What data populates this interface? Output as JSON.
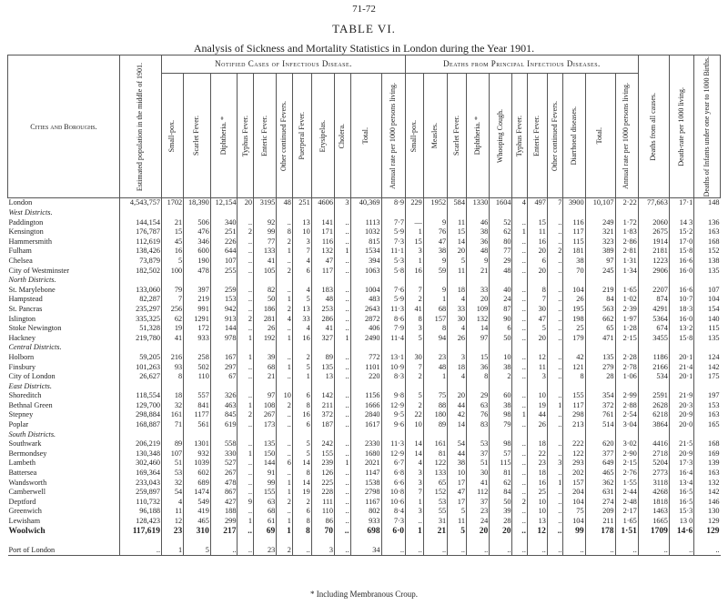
{
  "page_number": "71-72",
  "title": "TABLE VI.",
  "subtitle": "Analysis of Sickness and Mortality Statistics in London during the Year 1901.",
  "header": {
    "name": "Cities and Boroughs.",
    "population": "Estimated population in the middle of 1901.",
    "notified": {
      "title": "Notified Cases of Infectious Disease.",
      "columns": [
        "Small-pox.",
        "Scarlet Fever.",
        "Diphtheria. *",
        "Typhus Fever.",
        "Enteric Fever.",
        "Other continued Fevers.",
        "Puerperal Fever.",
        "Erysipelas.",
        "Cholera.",
        "Total.",
        "Annual rate per 1000 persons living."
      ]
    },
    "deaths": {
      "title": "Deaths from Principal Infectious Diseases.",
      "columns": [
        "Small-pox.",
        "Measles.",
        "Scarlet Fever.",
        "Diphtheria. *",
        "Whooping Cough.",
        "Typhus Fever.",
        "Enteric Fever.",
        "Other continued Fevers.",
        "Diarrhoeal diseases.",
        "Total.",
        "Annual rate per 1000 persons living."
      ]
    },
    "all_causes": "Deaths from all causes.",
    "death_rate": "Death-rate per 1000 living.",
    "infants": "Deaths of Infants under one year to 1000 Births."
  },
  "total_row": [
    "London",
    "4,543,757",
    "1702",
    "18,390",
    "12,154",
    "20",
    "3195",
    "48",
    "251",
    "4606",
    "3",
    "40,369",
    "8·9",
    "229",
    "1952",
    "584",
    "1330",
    "1604",
    "4",
    "497",
    "7",
    "3900",
    "10,107",
    "2·22",
    "77,663",
    "17·1",
    "148"
  ],
  "sections": [
    {
      "title": "West Districts.",
      "rows": [
        [
          "Paddington",
          "144,154",
          "21",
          "506",
          "340",
          "..",
          "92",
          "..",
          "13",
          "141",
          "..",
          "1113",
          "7·7",
          "—",
          "9",
          "11",
          "46",
          "52",
          "..",
          "15",
          "..",
          "116",
          "249",
          "1·72",
          "2060",
          "14 3",
          "136"
        ],
        [
          "Kensington",
          "176,787",
          "15",
          "476",
          "251",
          "2",
          "99",
          "8",
          "10",
          "171",
          "..",
          "1032",
          "5·9",
          "1",
          "76",
          "15",
          "38",
          "62",
          "1",
          "11",
          "..",
          "117",
          "321",
          "1·83",
          "2675",
          "15·2",
          "163"
        ],
        [
          "Hammersmith",
          "112,619",
          "45",
          "346",
          "226",
          "..",
          "77",
          "2",
          "3",
          "116",
          "..",
          "815",
          "7·3",
          "15",
          "47",
          "14",
          "36",
          "80",
          "..",
          "16",
          "..",
          "115",
          "323",
          "2·86",
          "1914",
          "17·0",
          "168"
        ],
        [
          "Fulham",
          "138,426",
          "16",
          "600",
          "644",
          "..",
          "133",
          "1",
          "7",
          "132",
          "1",
          "1534",
          "11·1",
          "3",
          "38",
          "20",
          "48",
          "77",
          "..",
          "20",
          "2",
          "181",
          "389",
          "2·81",
          "2181",
          "15·8",
          "152"
        ],
        [
          "Chelsea",
          "73,879",
          "5",
          "190",
          "107",
          "..",
          "41",
          "..",
          "4",
          "47",
          "..",
          "394",
          "5·3",
          "1",
          "9",
          "5",
          "9",
          "29",
          "..",
          "6",
          "..",
          "38",
          "97",
          "1·31",
          "1223",
          "16·6",
          "138"
        ],
        [
          "City of Westminster",
          "182,502",
          "100",
          "478",
          "255",
          "..",
          "105",
          "2",
          "6",
          "117",
          "..",
          "1063",
          "5·8",
          "16",
          "59",
          "11",
          "21",
          "48",
          "..",
          "20",
          "..",
          "70",
          "245",
          "1·34",
          "2906",
          "16·0",
          "135"
        ]
      ]
    },
    {
      "title": "North Districts.",
      "rows": [
        [
          "St. Marylebone",
          "133,060",
          "79",
          "397",
          "259",
          "..",
          "82",
          "..",
          "4",
          "183",
          "..",
          "1004",
          "7·6",
          "7",
          "9",
          "18",
          "33",
          "40",
          "..",
          "8",
          "..",
          "104",
          "219",
          "1·65",
          "2207",
          "16·6",
          "107"
        ],
        [
          "Hampstead",
          "82,287",
          "7",
          "219",
          "153",
          "..",
          "50",
          "1",
          "5",
          "48",
          "..",
          "483",
          "5·9",
          "2",
          "1",
          "4",
          "20",
          "24",
          "..",
          "7",
          "..",
          "26",
          "84",
          "1·02",
          "874",
          "10·7",
          "104"
        ],
        [
          "St. Pancras",
          "235,297",
          "256",
          "991",
          "942",
          "..",
          "186",
          "2",
          "13",
          "253",
          "..",
          "2643",
          "11·3",
          "41",
          "68",
          "33",
          "109",
          "87",
          "..",
          "30",
          "..",
          "195",
          "563",
          "2·39",
          "4291",
          "18·3",
          "154"
        ],
        [
          "Islington",
          "335,325",
          "62",
          "1291",
          "913",
          "2",
          "281",
          "4",
          "33",
          "286",
          "..",
          "2872",
          "8·6",
          "8",
          "157",
          "30",
          "132",
          "90",
          "..",
          "47",
          "..",
          "198",
          "662",
          "1·97",
          "5364",
          "16·0",
          "140"
        ],
        [
          "Stoke Newington",
          "51,328",
          "19",
          "172",
          "144",
          "..",
          "26",
          "..",
          "4",
          "41",
          "..",
          "406",
          "7·9",
          "3",
          "8",
          "4",
          "14",
          "6",
          "..",
          "5",
          "..",
          "25",
          "65",
          "1·28",
          "674",
          "13·2",
          "115"
        ],
        [
          "Hackney",
          "219,780",
          "41",
          "933",
          "978",
          "1",
          "192",
          "1",
          "16",
          "327",
          "1",
          "2490",
          "11·4",
          "5",
          "94",
          "26",
          "97",
          "50",
          "..",
          "20",
          "..",
          "179",
          "471",
          "2·15",
          "3455",
          "15·8",
          "135"
        ]
      ]
    },
    {
      "title": "Central Districts.",
      "rows": [
        [
          "Holborn",
          "59,205",
          "216",
          "258",
          "167",
          "1",
          "39",
          "..",
          "2",
          "89",
          "..",
          "772",
          "13·1",
          "30",
          "23",
          "3",
          "15",
          "10",
          "..",
          "12",
          "..",
          "42",
          "135",
          "2·28",
          "1186",
          "20·1",
          "124"
        ],
        [
          "Finsbury",
          "101,263",
          "93",
          "502",
          "297",
          "..",
          "68",
          "1",
          "5",
          "135",
          "..",
          "1101",
          "10·9",
          "7",
          "48",
          "18",
          "36",
          "38",
          "..",
          "11",
          "..",
          "121",
          "279",
          "2·78",
          "2166",
          "21·4",
          "142"
        ],
        [
          "City of London",
          "26,627",
          "8",
          "110",
          "67",
          "..",
          "21",
          "..",
          "1",
          "13",
          "..",
          "220",
          "8·3",
          "2",
          "1",
          "4",
          "8",
          "2",
          "..",
          "3",
          "..",
          "8",
          "28",
          "1·06",
          "534",
          "20·1",
          "175"
        ]
      ]
    },
    {
      "title": "East Districts.",
      "rows": [
        [
          "Shoreditch",
          "118,554",
          "18",
          "557",
          "326",
          "..",
          "97",
          "10",
          "6",
          "142",
          "..",
          "1156",
          "9·8",
          "5",
          "75",
          "20",
          "29",
          "60",
          "..",
          "10",
          "..",
          "155",
          "354",
          "2·99",
          "2591",
          "21·9",
          "197"
        ],
        [
          "Bethnal Green",
          "129,700",
          "32",
          "841",
          "463",
          "1",
          "108",
          "2",
          "8",
          "211",
          "..",
          "1666",
          "12·9",
          "2",
          "88",
          "44",
          "63",
          "38",
          "..",
          "19",
          "1",
          "117",
          "372",
          "2·88",
          "2628",
          "20·3",
          "153"
        ],
        [
          "Stepney",
          "298,884",
          "161",
          "1177",
          "845",
          "2",
          "267",
          "..",
          "16",
          "372",
          "..",
          "2840",
          "9·5",
          "22",
          "180",
          "42",
          "76",
          "98",
          "1",
          "44",
          "..",
          "298",
          "761",
          "2·54",
          "6218",
          "20·9",
          "163"
        ],
        [
          "Poplar",
          "168,887",
          "71",
          "561",
          "619",
          "..",
          "173",
          "..",
          "6",
          "187",
          "..",
          "1617",
          "9·6",
          "10",
          "89",
          "14",
          "83",
          "79",
          "..",
          "26",
          "..",
          "213",
          "514",
          "3·04",
          "3864",
          "20·0",
          "165"
        ]
      ]
    },
    {
      "title": "South Districts.",
      "rows": [
        [
          "Southwark",
          "206,219",
          "89",
          "1301",
          "558",
          "..",
          "135",
          "..",
          "5",
          "242",
          "..",
          "2330",
          "11·3",
          "14",
          "161",
          "54",
          "53",
          "98",
          "..",
          "18",
          "..",
          "222",
          "620",
          "3·02",
          "4416",
          "21·5",
          "168"
        ],
        [
          "Bermondsey",
          "130,348",
          "107",
          "932",
          "330",
          "1",
          "150",
          "..",
          "5",
          "155",
          "..",
          "1680",
          "12·9",
          "14",
          "81",
          "44",
          "37",
          "57",
          "..",
          "22",
          "..",
          "122",
          "377",
          "2·90",
          "2718",
          "20·9",
          "169"
        ],
        [
          "Lambeth",
          "302,460",
          "51",
          "1039",
          "527",
          "..",
          "144",
          "6",
          "14",
          "239",
          "1",
          "2021",
          "6·7",
          "4",
          "122",
          "38",
          "51",
          "115",
          "..",
          "23",
          "3",
          "293",
          "649",
          "2·15",
          "5204",
          "17·3",
          "139"
        ],
        [
          "Battersea",
          "169,364",
          "53",
          "602",
          "267",
          "..",
          "91",
          "..",
          "8",
          "126",
          "..",
          "1147",
          "6·8",
          "3",
          "133",
          "10",
          "30",
          "81",
          "..",
          "18",
          "..",
          "202",
          "465",
          "2·76",
          "2773",
          "16·4",
          "163"
        ],
        [
          "Wandsworth",
          "233,043",
          "32",
          "689",
          "478",
          "..",
          "99",
          "1",
          "14",
          "225",
          "..",
          "1538",
          "6·6",
          "3",
          "65",
          "17",
          "41",
          "62",
          "..",
          "16",
          "1",
          "157",
          "362",
          "1·55",
          "3118",
          "13·4",
          "132"
        ],
        [
          "Camberwell",
          "259,897",
          "54",
          "1474",
          "867",
          "..",
          "155",
          "1",
          "19",
          "228",
          "..",
          "2798",
          "10·8",
          "7",
          "152",
          "47",
          "112",
          "84",
          "..",
          "25",
          "..",
          "204",
          "631",
          "2·44",
          "4268",
          "16·5",
          "142"
        ],
        [
          "Deptford",
          "110,732",
          "4",
          "549",
          "427",
          "9",
          "63",
          "2",
          "2",
          "111",
          "..",
          "1167",
          "10·6",
          "1",
          "53",
          "17",
          "37",
          "50",
          "2",
          "10",
          "..",
          "104",
          "274",
          "2·48",
          "1818",
          "16·5",
          "146"
        ],
        [
          "Greenwich",
          "96,188",
          "11",
          "419",
          "188",
          "..",
          "68",
          "..",
          "6",
          "110",
          "..",
          "802",
          "8·4",
          "3",
          "55",
          "5",
          "23",
          "39",
          "..",
          "10",
          "..",
          "75",
          "209",
          "2·17",
          "1463",
          "15·3",
          "130"
        ],
        [
          "Lewisham",
          "128,423",
          "12",
          "465",
          "299",
          "1",
          "61",
          "1",
          "8",
          "86",
          "..",
          "933",
          "7·3",
          "..",
          "31",
          "11",
          "24",
          "28",
          "..",
          "13",
          "..",
          "104",
          "211",
          "1·65",
          "1665",
          "13 0",
          "129"
        ],
        [
          "Woolwich",
          "117,619",
          "23",
          "310",
          "217",
          "..",
          "69",
          "1",
          "8",
          "70",
          "..",
          "698",
          "6·0",
          "1",
          "21",
          "5",
          "20",
          "20",
          "..",
          "12",
          "..",
          "99",
          "178",
          "1·51",
          "1709",
          "14·6",
          "129"
        ]
      ]
    }
  ],
  "port_row": [
    "Port of London",
    "..",
    "1",
    "5",
    "..",
    "..",
    "23",
    "2",
    "..",
    "3",
    "..",
    "34",
    "..",
    "..",
    "..",
    "..",
    "..",
    "..",
    "..",
    "..",
    "..",
    "..",
    "..",
    "..",
    "..",
    "..",
    ".."
  ],
  "footnote": "* Including Membranous Croup."
}
